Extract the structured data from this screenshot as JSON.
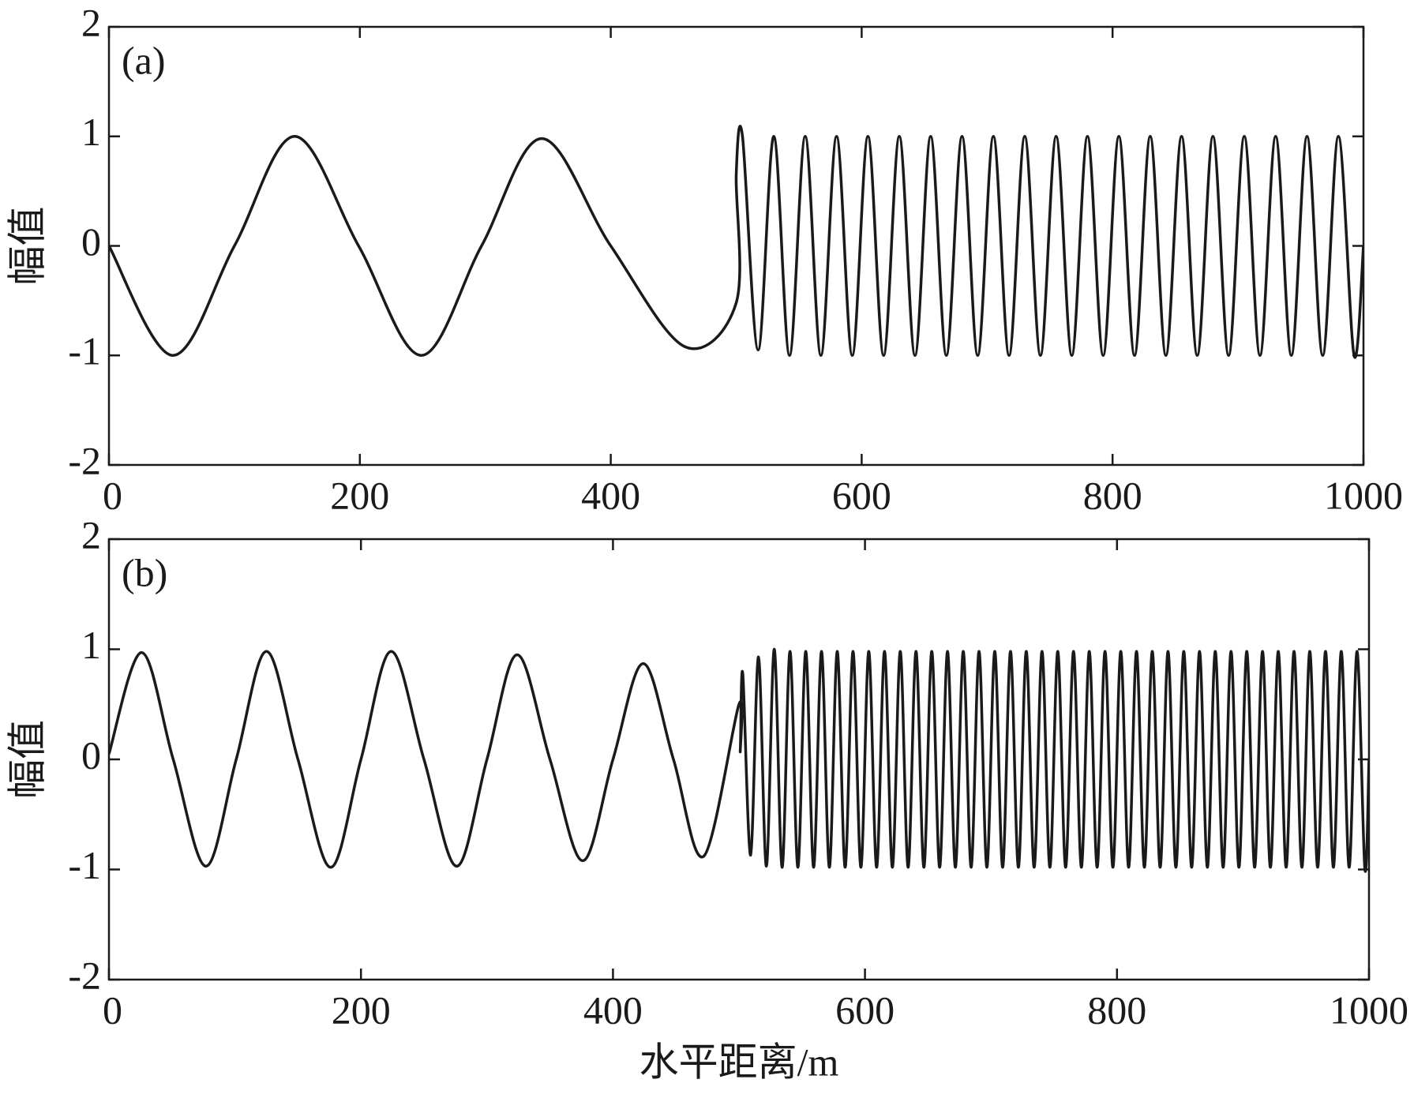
{
  "chart_data": [
    {
      "type": "line",
      "label": "(a)",
      "ylabel": "幅值",
      "color": "#1a1a1a",
      "xlim": [
        0,
        1000
      ],
      "ylim": [
        -2,
        2
      ],
      "xticks": [
        0,
        200,
        400,
        600,
        800,
        1000
      ],
      "yticks": [
        -2,
        -1,
        0,
        1,
        2
      ],
      "x": [
        0,
        51,
        100,
        148,
        199,
        249,
        297,
        345,
        400,
        459,
        500,
        500,
        505,
        517.5,
        530,
        542.5,
        555,
        567.5,
        580,
        592.5,
        605,
        617.5,
        630,
        642.5,
        655,
        667.5,
        680,
        692.5,
        705,
        717.5,
        730,
        742.5,
        755,
        767.5,
        780,
        792.5,
        805,
        817.5,
        830,
        842.5,
        855,
        867.5,
        880,
        892.5,
        905,
        917.5,
        930,
        942.5,
        955,
        967.5,
        980,
        992.5,
        1000
      ],
      "values": [
        0,
        -1,
        0,
        1,
        0,
        -1,
        0,
        0.98,
        0,
        -0.92,
        -0.52,
        0.65,
        1,
        -0.95,
        1,
        -1,
        1,
        -1,
        1,
        -1,
        1,
        -1,
        1,
        -1,
        1,
        -1,
        1,
        -1,
        1,
        -1,
        1,
        -1,
        1,
        -1,
        1,
        -1,
        1,
        -1,
        1,
        -1,
        1,
        -1,
        1,
        -1,
        1,
        -1,
        1,
        -1,
        1,
        -1,
        1,
        -1,
        0
      ]
    },
    {
      "type": "line",
      "label": "(b)",
      "ylabel": "幅值",
      "xlabel": "水平距离/m",
      "color": "#1a1a1a",
      "xlim": [
        0,
        1000
      ],
      "ylim": [
        -2,
        2
      ],
      "xticks": [
        0,
        200,
        400,
        600,
        800,
        1000
      ],
      "yticks": [
        -2,
        -1,
        0,
        1,
        2
      ],
      "x": [
        0,
        26,
        51,
        77,
        101,
        125,
        150,
        176,
        200,
        224,
        250,
        276,
        300,
        324,
        350,
        376,
        400,
        424,
        448,
        472,
        500,
        501,
        503,
        509.25,
        515.5,
        521.75,
        528,
        534.25,
        540.5,
        546.75,
        553,
        559.25,
        565.5,
        571.75,
        578,
        584.25,
        590.5,
        596.75,
        603,
        609.25,
        615.5,
        621.75,
        628,
        634.25,
        640.5,
        646.75,
        653,
        659.25,
        665.5,
        671.75,
        678,
        684.25,
        690.5,
        696.75,
        703,
        709.25,
        715.5,
        721.75,
        728,
        734.25,
        740.5,
        746.75,
        753,
        759.25,
        765.5,
        771.75,
        778,
        784.25,
        790.5,
        796.75,
        803,
        809.25,
        815.5,
        821.75,
        828,
        834.25,
        840.5,
        846.75,
        853,
        859.25,
        865.5,
        871.75,
        878,
        884.25,
        890.5,
        896.75,
        903,
        909.25,
        915.5,
        921.75,
        928,
        934.25,
        940.5,
        946.75,
        953,
        959.25,
        965.5,
        971.75,
        978,
        984.25,
        990.5,
        996.75,
        1000
      ],
      "values": [
        0.05,
        0.97,
        0,
        -0.97,
        0,
        0.98,
        0,
        -0.98,
        0,
        0.98,
        0,
        -0.97,
        0,
        0.95,
        0,
        -0.92,
        0,
        0.87,
        0,
        -0.88,
        0.5,
        0.07,
        0.78,
        -0.87,
        0.93,
        -0.97,
        1,
        -0.98,
        0.98,
        -0.98,
        0.98,
        -0.98,
        0.98,
        -0.98,
        0.98,
        -0.98,
        0.98,
        -0.98,
        0.98,
        -0.98,
        0.98,
        -0.98,
        0.98,
        -0.98,
        0.98,
        -0.98,
        0.98,
        -0.98,
        0.98,
        -0.98,
        0.98,
        -0.98,
        0.98,
        -0.98,
        0.98,
        -0.98,
        0.98,
        -0.98,
        0.98,
        -0.98,
        0.98,
        -0.98,
        0.98,
        -0.98,
        0.98,
        -0.98,
        0.98,
        -0.98,
        0.98,
        -0.98,
        0.98,
        -0.98,
        0.98,
        -0.98,
        0.98,
        -0.98,
        0.98,
        -0.98,
        0.98,
        -0.98,
        0.98,
        -0.98,
        0.98,
        -0.98,
        0.98,
        -0.98,
        0.98,
        -0.98,
        0.98,
        -0.98,
        0.98,
        -0.98,
        0.98,
        -0.98,
        0.98,
        -0.98,
        0.98,
        -0.98,
        0.98,
        -0.98,
        0.98,
        -1,
        0
      ]
    }
  ]
}
